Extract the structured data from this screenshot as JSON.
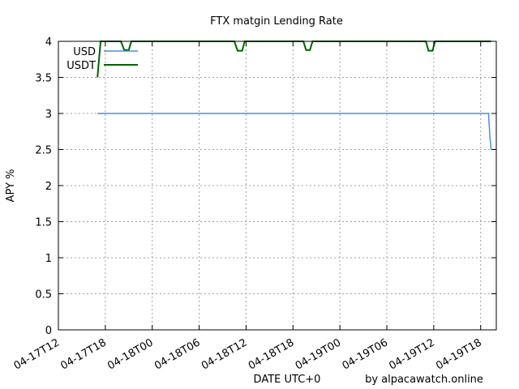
{
  "chart_data": {
    "type": "line",
    "title": "FTX matgin Lending Rate",
    "xlabel": "DATE UTC+0",
    "ylabel": "APY %",
    "credit": "by alpacawatch.online",
    "ylim": [
      0,
      4
    ],
    "yticks": [
      0,
      0.5,
      1,
      1.5,
      2,
      2.5,
      3,
      3.5,
      4
    ],
    "ytick_labels": [
      "0",
      "0.5",
      "1",
      "1.5",
      "2",
      "2.5",
      "3",
      "3.5",
      "4"
    ],
    "xlim": [
      "2021-04-17T12:00",
      "2021-04-19T20:00"
    ],
    "xticks": [
      "2021-04-17T12:00",
      "2021-04-17T18:00",
      "2021-04-18T00:00",
      "2021-04-18T06:00",
      "2021-04-18T12:00",
      "2021-04-18T18:00",
      "2021-04-19T00:00",
      "2021-04-19T06:00",
      "2021-04-19T12:00",
      "2021-04-19T18:00"
    ],
    "xtick_labels": [
      "04-17T12",
      "04-17T18",
      "04-18T00",
      "04-18T06",
      "04-18T12",
      "04-18T18",
      "04-19T00",
      "04-19T06",
      "04-19T12",
      "04-19T18"
    ],
    "grid": true,
    "legend_position": "top-left",
    "series": [
      {
        "name": "USD",
        "color": "#4a90d9",
        "points": [
          [
            "2021-04-17T17:00",
            3
          ],
          [
            "2021-04-18T06:00",
            3
          ],
          [
            "2021-04-18T18:00",
            3
          ],
          [
            "2021-04-19T06:00",
            3
          ],
          [
            "2021-04-19T19:00",
            3
          ],
          [
            "2021-04-19T19:05",
            2.85
          ],
          [
            "2021-04-19T19:12",
            2.65
          ],
          [
            "2021-04-19T19:20",
            2.5
          ]
        ]
      },
      {
        "name": "USDT",
        "color": "#006400",
        "points": [
          [
            "2021-04-17T17:00",
            3.5
          ],
          [
            "2021-04-17T17:12",
            3.75
          ],
          [
            "2021-04-17T17:24",
            4
          ],
          [
            "2021-04-17T20:00",
            4
          ],
          [
            "2021-04-17T20:25",
            3.88
          ],
          [
            "2021-04-17T21:00",
            3.88
          ],
          [
            "2021-04-17T21:20",
            4
          ],
          [
            "2021-04-18T10:30",
            4
          ],
          [
            "2021-04-18T10:55",
            3.87
          ],
          [
            "2021-04-18T11:30",
            3.87
          ],
          [
            "2021-04-18T11:50",
            4
          ],
          [
            "2021-04-18T18:00",
            4
          ],
          [
            "2021-04-18T19:20",
            4
          ],
          [
            "2021-04-18T19:40",
            3.88
          ],
          [
            "2021-04-18T20:10",
            3.88
          ],
          [
            "2021-04-18T20:30",
            4
          ],
          [
            "2021-04-19T11:00",
            4
          ],
          [
            "2021-04-19T11:20",
            3.87
          ],
          [
            "2021-04-19T11:50",
            3.87
          ],
          [
            "2021-04-19T12:10",
            4
          ],
          [
            "2021-04-19T19:20",
            4
          ]
        ]
      }
    ]
  }
}
